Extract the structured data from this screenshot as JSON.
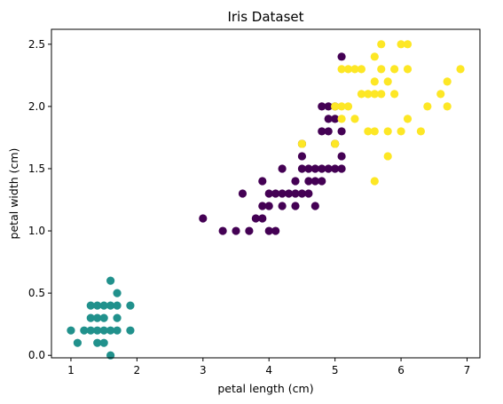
{
  "chart_data": {
    "type": "scatter",
    "title": "Iris Dataset",
    "xlabel": "petal length (cm)",
    "ylabel": "petal width (cm)",
    "xlim": [
      0.705,
      7.195
    ],
    "ylim": [
      -0.02,
      2.62
    ],
    "xticks": [
      1,
      2,
      3,
      4,
      5,
      6,
      7
    ],
    "yticks": [
      0.0,
      0.5,
      1.0,
      1.5,
      2.0,
      2.5
    ],
    "xtick_labels": [
      "1",
      "2",
      "3",
      "4",
      "5",
      "6",
      "7"
    ],
    "ytick_labels": [
      "0.0",
      "0.5",
      "1.0",
      "1.5",
      "2.0",
      "2.5"
    ],
    "grid": false,
    "legend": false,
    "series": [
      {
        "color": "#21918c",
        "points": [
          [
            1.0,
            0.2
          ],
          [
            1.1,
            0.1
          ],
          [
            1.2,
            0.2
          ],
          [
            1.3,
            0.2
          ],
          [
            1.3,
            0.3
          ],
          [
            1.3,
            0.4
          ],
          [
            1.4,
            0.2
          ],
          [
            1.4,
            0.3
          ],
          [
            1.4,
            0.1
          ],
          [
            1.5,
            0.1
          ],
          [
            1.5,
            0.2
          ],
          [
            1.5,
            0.3
          ],
          [
            1.5,
            0.4
          ],
          [
            1.6,
            0.2
          ],
          [
            1.6,
            0.4
          ],
          [
            1.6,
            0.6
          ],
          [
            1.6,
            0.0
          ],
          [
            1.7,
            0.2
          ],
          [
            1.7,
            0.3
          ],
          [
            1.7,
            0.4
          ],
          [
            1.7,
            0.5
          ],
          [
            1.9,
            0.2
          ],
          [
            1.9,
            0.4
          ],
          [
            1.4,
            0.4
          ]
        ]
      },
      {
        "color": "#440154",
        "points": [
          [
            3.0,
            1.1
          ],
          [
            3.3,
            1.0
          ],
          [
            3.5,
            1.0
          ],
          [
            3.6,
            1.3
          ],
          [
            3.7,
            1.0
          ],
          [
            3.8,
            1.1
          ],
          [
            3.9,
            1.1
          ],
          [
            3.9,
            1.2
          ],
          [
            3.9,
            1.4
          ],
          [
            4.0,
            1.0
          ],
          [
            4.0,
            1.2
          ],
          [
            4.0,
            1.3
          ],
          [
            4.1,
            1.0
          ],
          [
            4.1,
            1.3
          ],
          [
            4.2,
            1.2
          ],
          [
            4.2,
            1.3
          ],
          [
            4.2,
            1.5
          ],
          [
            4.3,
            1.3
          ],
          [
            4.4,
            1.2
          ],
          [
            4.4,
            1.3
          ],
          [
            4.4,
            1.4
          ],
          [
            4.5,
            1.3
          ],
          [
            4.5,
            1.5
          ],
          [
            4.5,
            1.6
          ],
          [
            4.5,
            1.7
          ],
          [
            4.6,
            1.3
          ],
          [
            4.6,
            1.4
          ],
          [
            4.6,
            1.5
          ],
          [
            4.7,
            1.2
          ],
          [
            4.7,
            1.4
          ],
          [
            4.7,
            1.5
          ],
          [
            4.8,
            1.4
          ],
          [
            4.8,
            1.8
          ],
          [
            4.9,
            1.5
          ],
          [
            4.9,
            2.0
          ],
          [
            5.0,
            1.7
          ],
          [
            5.0,
            1.9
          ],
          [
            5.1,
            1.6
          ],
          [
            4.8,
            1.5
          ],
          [
            5.0,
            1.5
          ],
          [
            4.9,
            1.8
          ],
          [
            5.1,
            1.5
          ],
          [
            4.9,
            1.9
          ],
          [
            4.8,
            2.0
          ],
          [
            5.1,
            2.4
          ],
          [
            5.1,
            1.8
          ],
          [
            5.0,
            2.0
          ]
        ]
      },
      {
        "color": "#fde725",
        "points": [
          [
            4.5,
            1.7
          ],
          [
            5.0,
            1.7
          ],
          [
            5.0,
            2.0
          ],
          [
            5.1,
            2.0
          ],
          [
            5.1,
            2.3
          ],
          [
            5.2,
            2.0
          ],
          [
            5.2,
            2.3
          ],
          [
            5.3,
            1.9
          ],
          [
            5.3,
            2.3
          ],
          [
            5.4,
            2.1
          ],
          [
            5.4,
            2.3
          ],
          [
            5.5,
            1.8
          ],
          [
            5.5,
            2.1
          ],
          [
            5.6,
            1.4
          ],
          [
            5.6,
            1.8
          ],
          [
            5.6,
            2.1
          ],
          [
            5.6,
            2.4
          ],
          [
            5.6,
            2.2
          ],
          [
            5.7,
            2.1
          ],
          [
            5.7,
            2.3
          ],
          [
            5.7,
            2.5
          ],
          [
            5.8,
            1.6
          ],
          [
            5.8,
            2.2
          ],
          [
            5.8,
            1.8
          ],
          [
            5.9,
            2.1
          ],
          [
            5.9,
            2.3
          ],
          [
            6.0,
            1.8
          ],
          [
            6.0,
            2.5
          ],
          [
            6.1,
            1.9
          ],
          [
            6.1,
            2.3
          ],
          [
            6.1,
            2.5
          ],
          [
            6.3,
            1.8
          ],
          [
            6.4,
            2.0
          ],
          [
            6.6,
            2.1
          ],
          [
            6.7,
            2.0
          ],
          [
            6.7,
            2.2
          ],
          [
            6.9,
            2.3
          ],
          [
            5.1,
            1.9
          ],
          [
            5.5,
            2.1
          ]
        ]
      }
    ]
  }
}
